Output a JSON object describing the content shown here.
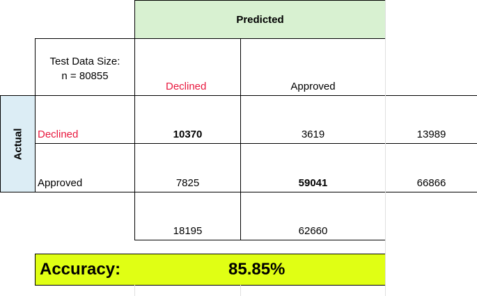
{
  "header": "Predicted",
  "actual_label": "Actual",
  "test_size": {
    "line1": "Test Data Size:",
    "line2": "n = 80855"
  },
  "column_labels": [
    "Declined",
    "Approved"
  ],
  "rows": [
    {
      "label": "Declined",
      "cells": [
        10370,
        3619
      ],
      "total": 13989
    },
    {
      "label": "Approved",
      "cells": [
        7825,
        59041
      ],
      "total": 66866
    }
  ],
  "column_totals": [
    18195,
    62660
  ],
  "accuracy": {
    "label": "Accuracy:",
    "value": "85.85%"
  }
}
